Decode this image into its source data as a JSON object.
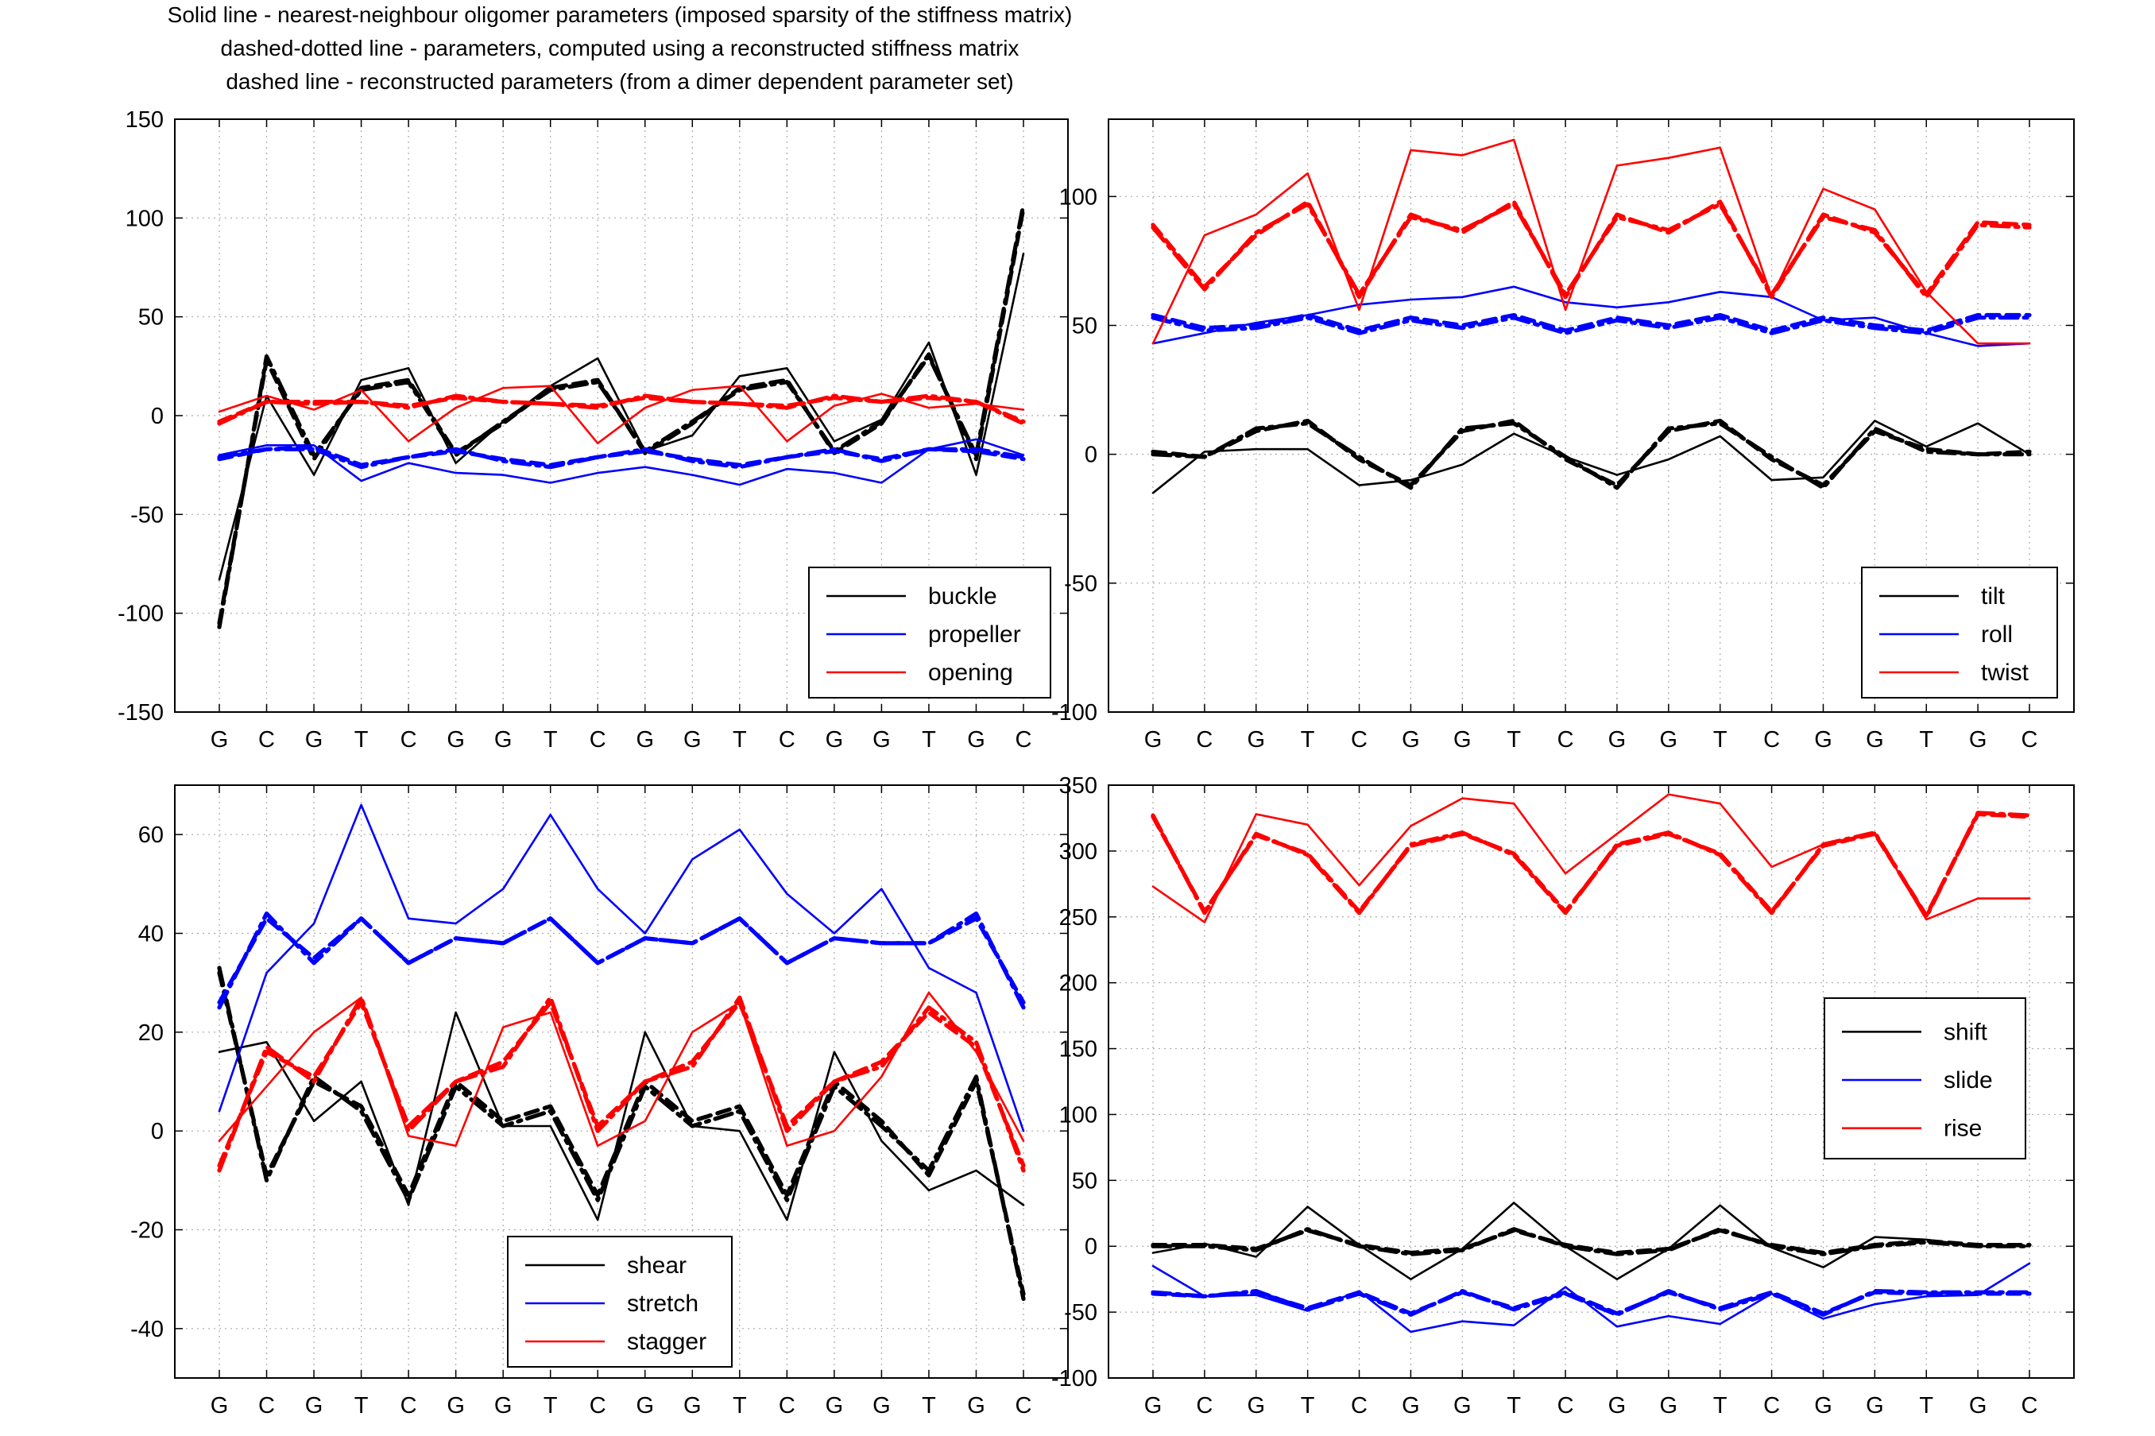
{
  "figure_title": [
    "Solid line - nearest-neighbour oligomer parameters (imposed sparsity of the stiffness matrix)",
    "dashed-dotted line - parameters, computed using a reconstructed stiffness matrix",
    "dashed line - reconstructed parameters (from a dimer dependent parameter set)"
  ],
  "colors": {
    "black": "#000000",
    "blue": "#0000ff",
    "red": "#ff0000",
    "grid": "#aaaaaa"
  },
  "line_styles": {
    "solid": "nearest-neighbour oligomer parameters",
    "dashdot": "computed using reconstructed stiffness matrix",
    "dashed": "reconstructed parameters"
  },
  "chart_data": [
    {
      "type": "line",
      "title": "",
      "categories": [
        "G",
        "C",
        "G",
        "T",
        "C",
        "G",
        "G",
        "T",
        "C",
        "G",
        "G",
        "T",
        "C",
        "G",
        "G",
        "T",
        "G",
        "C"
      ],
      "ylim": [
        -150,
        150
      ],
      "yticks": [
        -150,
        -100,
        -50,
        0,
        50,
        100,
        150
      ],
      "ytick_labels": [
        "-150",
        "-100",
        "-50",
        "0",
        "50",
        "100",
        "150"
      ],
      "grid": true,
      "legend_position": "bottom-right",
      "series": [
        {
          "name": "buckle",
          "color": "#000000",
          "legend": true,
          "style": "solid",
          "values": [
            -83,
            10,
            -30,
            18,
            24,
            -24,
            -3,
            15,
            29,
            -18,
            -10,
            20,
            24,
            -13,
            -2,
            37,
            -30,
            82
          ]
        },
        {
          "name": "buckle",
          "color": "#000000",
          "legend": false,
          "style": "dashdot",
          "values": [
            -107,
            30,
            -20,
            13,
            17,
            -20,
            -3,
            13,
            17,
            -18,
            -3,
            13,
            17,
            -18,
            -3,
            30,
            -20,
            107
          ]
        },
        {
          "name": "buckle",
          "color": "#000000",
          "legend": false,
          "style": "dashed",
          "values": [
            -105,
            28,
            -22,
            14,
            18,
            -19,
            -4,
            14,
            18,
            -19,
            -4,
            14,
            18,
            -19,
            -4,
            31,
            -22,
            105
          ]
        },
        {
          "name": "propeller",
          "color": "#0000ff",
          "legend": true,
          "style": "solid",
          "values": [
            -20,
            -15,
            -15,
            -33,
            -24,
            -29,
            -30,
            -34,
            -29,
            -26,
            -30,
            -35,
            -27,
            -29,
            -34,
            -17,
            -12,
            -20
          ]
        },
        {
          "name": "propeller",
          "color": "#0000ff",
          "legend": false,
          "style": "dashdot",
          "values": [
            -21,
            -17,
            -17,
            -26,
            -21,
            -17,
            -23,
            -26,
            -21,
            -17,
            -23,
            -26,
            -21,
            -17,
            -23,
            -17,
            -17,
            -21
          ]
        },
        {
          "name": "propeller",
          "color": "#0000ff",
          "legend": false,
          "style": "dashed",
          "values": [
            -22,
            -17,
            -16,
            -25,
            -21,
            -18,
            -22,
            -25,
            -21,
            -18,
            -22,
            -25,
            -21,
            -18,
            -22,
            -17,
            -18,
            -22
          ]
        },
        {
          "name": "opening",
          "color": "#ff0000",
          "legend": true,
          "style": "solid",
          "values": [
            2,
            10,
            3,
            13,
            -13,
            4,
            14,
            15,
            -14,
            4,
            13,
            15,
            -13,
            5,
            11,
            4,
            6,
            3
          ]
        },
        {
          "name": "opening",
          "color": "#ff0000",
          "legend": false,
          "style": "dashdot",
          "values": [
            -4,
            7,
            7,
            7,
            4,
            10,
            7,
            6,
            4,
            10,
            7,
            6,
            4,
            10,
            7,
            10,
            7,
            -4
          ]
        },
        {
          "name": "opening",
          "color": "#ff0000",
          "legend": false,
          "style": "dashed",
          "values": [
            -3,
            7,
            6,
            7,
            5,
            9,
            7,
            6,
            5,
            9,
            7,
            6,
            5,
            9,
            7,
            9,
            7,
            -3
          ]
        }
      ]
    },
    {
      "type": "line",
      "title": "",
      "categories": [
        "G",
        "C",
        "G",
        "T",
        "C",
        "G",
        "G",
        "T",
        "C",
        "G",
        "G",
        "T",
        "C",
        "G",
        "G",
        "T",
        "G",
        "C"
      ],
      "ylim": [
        -100,
        130
      ],
      "yticks": [
        -100,
        -50,
        0,
        50,
        100
      ],
      "ytick_labels": [
        "-100",
        "-50",
        "0",
        "50",
        "100"
      ],
      "grid": true,
      "legend_position": "bottom-right",
      "series": [
        {
          "name": "tilt",
          "color": "#000000",
          "legend": true,
          "style": "solid",
          "values": [
            -15,
            1,
            2,
            2,
            -12,
            -10,
            -4,
            8,
            -1,
            -8,
            -2,
            7,
            -10,
            -9,
            13,
            3,
            12,
            0
          ]
        },
        {
          "name": "tilt",
          "color": "#000000",
          "legend": false,
          "style": "dashdot",
          "values": [
            0,
            -1,
            10,
            12,
            -1,
            -13,
            10,
            12,
            -1,
            -13,
            10,
            12,
            -1,
            -13,
            10,
            1,
            0,
            0
          ]
        },
        {
          "name": "tilt",
          "color": "#000000",
          "legend": false,
          "style": "dashed",
          "values": [
            1,
            -1,
            9,
            13,
            -2,
            -12,
            9,
            13,
            -2,
            -12,
            9,
            13,
            -2,
            -12,
            9,
            2,
            0,
            1
          ]
        },
        {
          "name": "roll",
          "color": "#0000ff",
          "legend": true,
          "style": "solid",
          "values": [
            43,
            47,
            51,
            54,
            58,
            60,
            61,
            65,
            59,
            57,
            59,
            63,
            61,
            52,
            53,
            47,
            42,
            43
          ]
        },
        {
          "name": "roll",
          "color": "#0000ff",
          "legend": false,
          "style": "dashdot",
          "values": [
            53,
            48,
            49,
            53,
            47,
            52,
            49,
            53,
            47,
            52,
            49,
            53,
            47,
            52,
            49,
            47,
            53,
            53
          ]
        },
        {
          "name": "roll",
          "color": "#0000ff",
          "legend": false,
          "style": "dashed",
          "values": [
            54,
            49,
            50,
            54,
            48,
            53,
            50,
            54,
            48,
            53,
            50,
            54,
            48,
            53,
            50,
            48,
            54,
            54
          ]
        },
        {
          "name": "twist",
          "color": "#ff0000",
          "legend": true,
          "style": "solid",
          "values": [
            43,
            85,
            93,
            109,
            56,
            118,
            116,
            122,
            56,
            112,
            115,
            119,
            61,
            103,
            95,
            63,
            43,
            43
          ]
        },
        {
          "name": "twist",
          "color": "#ff0000",
          "legend": false,
          "style": "dashdot",
          "values": [
            88,
            64,
            86,
            97,
            62,
            92,
            87,
            97,
            62,
            92,
            87,
            97,
            62,
            92,
            87,
            61,
            89,
            88
          ]
        },
        {
          "name": "twist",
          "color": "#ff0000",
          "legend": false,
          "style": "dashed",
          "values": [
            89,
            65,
            85,
            98,
            61,
            93,
            86,
            98,
            61,
            93,
            86,
            98,
            61,
            93,
            86,
            62,
            90,
            89
          ]
        }
      ]
    },
    {
      "type": "line",
      "title": "",
      "categories": [
        "G",
        "C",
        "G",
        "T",
        "C",
        "G",
        "G",
        "T",
        "C",
        "G",
        "G",
        "T",
        "C",
        "G",
        "G",
        "T",
        "G",
        "C"
      ],
      "ylim": [
        -50,
        70
      ],
      "yticks": [
        -40,
        -20,
        0,
        20,
        40,
        60
      ],
      "ytick_labels": [
        "-40",
        "-20",
        "0",
        "20",
        "40",
        "60"
      ],
      "grid": true,
      "legend_position": "bottom-center",
      "series": [
        {
          "name": "shear",
          "color": "#000000",
          "legend": true,
          "style": "solid",
          "values": [
            16,
            18,
            2,
            10,
            -15,
            24,
            1,
            1,
            -18,
            20,
            1,
            0,
            -18,
            16,
            -2,
            -12,
            -8,
            -15
          ]
        },
        {
          "name": "shear",
          "color": "#000000",
          "legend": false,
          "style": "dashdot",
          "values": [
            33,
            -10,
            11,
            4,
            -14,
            9,
            1,
            4,
            -14,
            9,
            1,
            4,
            -14,
            9,
            1,
            -8,
            11,
            -34
          ]
        },
        {
          "name": "shear",
          "color": "#000000",
          "legend": false,
          "style": "dashed",
          "values": [
            32,
            -9,
            10,
            5,
            -13,
            10,
            2,
            5,
            -13,
            10,
            2,
            5,
            -13,
            10,
            2,
            -9,
            10,
            -33
          ]
        },
        {
          "name": "stretch",
          "color": "#0000ff",
          "legend": true,
          "style": "solid",
          "values": [
            4,
            32,
            42,
            66,
            43,
            42,
            49,
            64,
            49,
            40,
            55,
            61,
            48,
            40,
            49,
            33,
            28,
            0
          ]
        },
        {
          "name": "stretch",
          "color": "#0000ff",
          "legend": false,
          "style": "dashdot",
          "values": [
            25,
            44,
            34,
            43,
            34,
            39,
            38,
            43,
            34,
            39,
            38,
            43,
            34,
            39,
            38,
            38,
            44,
            25
          ]
        },
        {
          "name": "stretch",
          "color": "#0000ff",
          "legend": false,
          "style": "dashed",
          "values": [
            26,
            43,
            35,
            43,
            34,
            39,
            38,
            43,
            34,
            39,
            38,
            43,
            34,
            39,
            38,
            38,
            43,
            26
          ]
        },
        {
          "name": "stagger",
          "color": "#ff0000",
          "legend": true,
          "style": "solid",
          "values": [
            -2,
            9,
            20,
            27,
            -1,
            -3,
            21,
            24,
            -3,
            2,
            20,
            26,
            -3,
            0,
            11,
            28,
            16,
            -2
          ]
        },
        {
          "name": "stagger",
          "color": "#ff0000",
          "legend": false,
          "style": "dashdot",
          "values": [
            -8,
            17,
            10,
            27,
            0,
            10,
            13,
            27,
            0,
            10,
            13,
            27,
            0,
            10,
            13,
            25,
            18,
            -8
          ]
        },
        {
          "name": "stagger",
          "color": "#ff0000",
          "legend": false,
          "style": "dashed",
          "values": [
            -7,
            16,
            11,
            26,
            1,
            10,
            14,
            26,
            1,
            10,
            14,
            26,
            1,
            10,
            14,
            24,
            17,
            -7
          ]
        }
      ]
    },
    {
      "type": "line",
      "title": "",
      "categories": [
        "G",
        "C",
        "G",
        "T",
        "C",
        "G",
        "G",
        "T",
        "C",
        "G",
        "G",
        "T",
        "C",
        "G",
        "G",
        "T",
        "G",
        "C"
      ],
      "ylim": [
        -100,
        350
      ],
      "yticks": [
        -100,
        -50,
        0,
        50,
        100,
        150,
        200,
        250,
        300,
        350
      ],
      "ytick_labels": [
        "-100",
        "-50",
        "0",
        "50",
        "100",
        "150",
        "200",
        "250",
        "300",
        "350"
      ],
      "grid": true,
      "legend_position": "middle-right",
      "series": [
        {
          "name": "shift",
          "color": "#000000",
          "legend": true,
          "style": "solid",
          "values": [
            -5,
            2,
            -8,
            30,
            1,
            -25,
            -2,
            33,
            0,
            -25,
            -2,
            31,
            -1,
            -16,
            7,
            5,
            0,
            0
          ]
        },
        {
          "name": "shift",
          "color": "#000000",
          "legend": false,
          "style": "dashdot",
          "values": [
            0,
            0,
            -3,
            13,
            0,
            -6,
            -3,
            13,
            0,
            -6,
            -3,
            13,
            0,
            -6,
            0,
            3,
            0,
            0
          ]
        },
        {
          "name": "shift",
          "color": "#000000",
          "legend": false,
          "style": "dashed",
          "values": [
            1,
            1,
            -2,
            12,
            1,
            -5,
            -2,
            12,
            1,
            -5,
            -2,
            12,
            1,
            -5,
            1,
            4,
            1,
            1
          ]
        },
        {
          "name": "slide",
          "color": "#0000ff",
          "legend": true,
          "style": "solid",
          "values": [
            -15,
            -38,
            -37,
            -49,
            -34,
            -65,
            -57,
            -60,
            -31,
            -61,
            -53,
            -59,
            -36,
            -55,
            -44,
            -38,
            -37,
            -13
          ]
        },
        {
          "name": "slide",
          "color": "#0000ff",
          "legend": false,
          "style": "dashdot",
          "values": [
            -35,
            -38,
            -34,
            -48,
            -36,
            -52,
            -34,
            -48,
            -36,
            -52,
            -34,
            -48,
            -36,
            -52,
            -34,
            -35,
            -35,
            -35
          ]
        },
        {
          "name": "slide",
          "color": "#0000ff",
          "legend": false,
          "style": "dashed",
          "values": [
            -36,
            -38,
            -35,
            -47,
            -35,
            -51,
            -35,
            -47,
            -35,
            -51,
            -35,
            -47,
            -35,
            -51,
            -35,
            -36,
            -36,
            -36
          ]
        },
        {
          "name": "rise",
          "color": "#ff0000",
          "legend": true,
          "style": "solid",
          "values": [
            273,
            246,
            328,
            320,
            274,
            319,
            340,
            336,
            283,
            313,
            343,
            336,
            288,
            305,
            314,
            248,
            264,
            264
          ]
        },
        {
          "name": "rise",
          "color": "#ff0000",
          "legend": false,
          "style": "dashdot",
          "values": [
            327,
            253,
            313,
            297,
            253,
            305,
            314,
            297,
            253,
            305,
            314,
            297,
            253,
            305,
            314,
            250,
            329,
            327
          ]
        },
        {
          "name": "rise",
          "color": "#ff0000",
          "legend": false,
          "style": "dashed",
          "values": [
            326,
            254,
            312,
            298,
            254,
            304,
            313,
            298,
            254,
            304,
            313,
            298,
            254,
            304,
            313,
            251,
            328,
            326
          ]
        }
      ]
    }
  ]
}
